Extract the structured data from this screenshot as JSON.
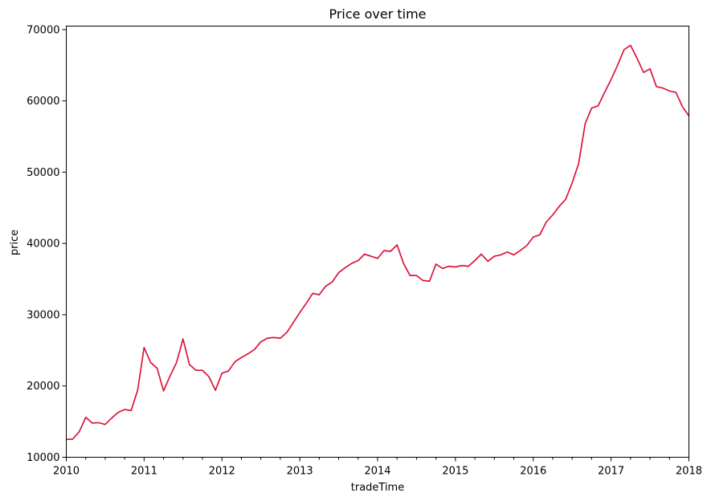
{
  "chart_data": {
    "type": "line",
    "title": "Price over time",
    "xlabel": "tradeTime",
    "ylabel": "price",
    "xlim": [
      2010.0,
      2018.0
    ],
    "ylim": [
      10000,
      70500
    ],
    "x_ticks": [
      "2010",
      "2011",
      "2012",
      "2013",
      "2014",
      "2015",
      "2016",
      "2017",
      "2018"
    ],
    "y_ticks": [
      "10000",
      "20000",
      "30000",
      "40000",
      "50000",
      "60000",
      "70000"
    ],
    "grid": false,
    "legend": "none",
    "line_color": "#dc143c",
    "series": [
      {
        "x": [
          2010.0,
          2010.083,
          2010.167,
          2010.25,
          2010.333,
          2010.417,
          2010.5,
          2010.583,
          2010.667,
          2010.75,
          2010.833,
          2010.917,
          2011.0,
          2011.083,
          2011.167,
          2011.25,
          2011.333,
          2011.417,
          2011.5,
          2011.583,
          2011.667,
          2011.75,
          2011.833,
          2011.917,
          2012.0,
          2012.083,
          2012.167,
          2012.25,
          2012.333,
          2012.417,
          2012.5,
          2012.583,
          2012.667,
          2012.75,
          2012.833,
          2012.917,
          2013.0,
          2013.083,
          2013.167,
          2013.25,
          2013.333,
          2013.417,
          2013.5,
          2013.583,
          2013.667,
          2013.75,
          2013.833,
          2013.917,
          2014.0,
          2014.083,
          2014.167,
          2014.25,
          2014.333,
          2014.417,
          2014.5,
          2014.583,
          2014.667,
          2014.75,
          2014.833,
          2014.917,
          2015.0,
          2015.083,
          2015.167,
          2015.25,
          2015.333,
          2015.417,
          2015.5,
          2015.583,
          2015.667,
          2015.75,
          2015.833,
          2015.917,
          2016.0,
          2016.083,
          2016.167,
          2016.25,
          2016.333,
          2016.417,
          2016.5,
          2016.583,
          2016.667,
          2016.75,
          2016.833,
          2016.917,
          2017.0,
          2017.083,
          2017.167,
          2017.25,
          2017.333,
          2017.417,
          2017.5,
          2017.583,
          2017.667,
          2017.75,
          2017.833,
          2017.917,
          2018.0
        ],
        "values": [
          12500,
          12550,
          13600,
          15600,
          14800,
          14850,
          14600,
          15500,
          16300,
          16700,
          16550,
          19400,
          25400,
          23300,
          22500,
          19300,
          21400,
          23300,
          26600,
          23000,
          22200,
          22200,
          21300,
          19400,
          21800,
          22100,
          23400,
          24000,
          24500,
          25100,
          26200,
          26700,
          26800,
          26700,
          27500,
          28900,
          30300,
          31600,
          33000,
          32800,
          34000,
          34600,
          35900,
          36600,
          37200,
          37600,
          38500,
          38200,
          37900,
          39000,
          38900,
          39800,
          37200,
          35500,
          35500,
          34800,
          34700,
          37100,
          36500,
          36800,
          36700,
          36900,
          36800,
          37600,
          38500,
          37500,
          38200,
          38400,
          38800,
          38400,
          39000,
          39700,
          40900,
          41200,
          43000,
          44000,
          45200,
          46200,
          48500,
          51200,
          56800,
          59000,
          59300,
          61200,
          63000,
          65000,
          67200,
          67800,
          66000,
          64000,
          64500,
          62000,
          61800,
          61400,
          61200,
          59200,
          57900
        ]
      }
    ]
  }
}
